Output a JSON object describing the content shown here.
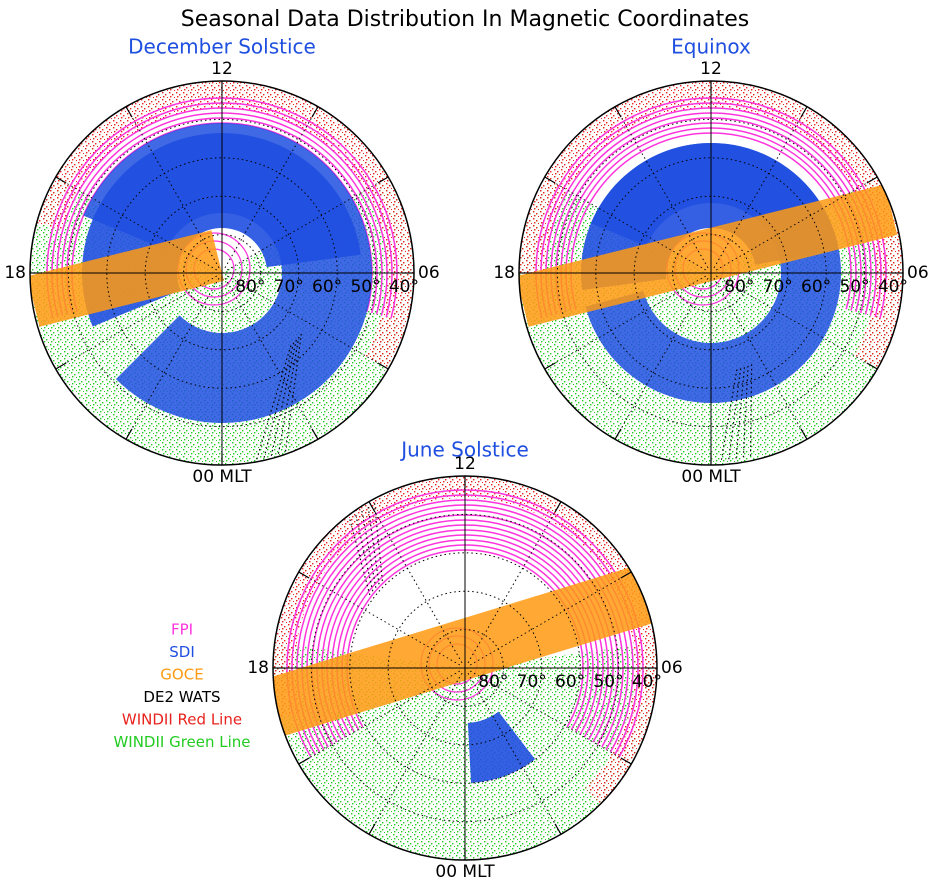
{
  "title": "Seasonal Data Distribution In Magnetic Coordinates",
  "legend": [
    {
      "name": "FPI",
      "color": "#ff33dd"
    },
    {
      "name": "SDI",
      "color": "#1f4fe0"
    },
    {
      "name": "GOCE",
      "color": "#ff9a10"
    },
    {
      "name": "DE2 WATS",
      "color": "#000000"
    },
    {
      "name": "WINDII Red Line",
      "color": "#e8231e"
    },
    {
      "name": "WINDII Green Line",
      "color": "#22cc22"
    }
  ],
  "chart_data": [
    {
      "type": "polar",
      "title": "December Solstice",
      "title_color": "#1f4fe0",
      "rlim": [
        90,
        40
      ],
      "rticks": [
        {
          "value": 80,
          "label": "80°"
        },
        {
          "value": 70,
          "label": "70°"
        },
        {
          "value": 60,
          "label": "60°"
        },
        {
          "value": 50,
          "label": "50°"
        },
        {
          "value": 40,
          "label": "40°"
        }
      ],
      "thetaticks": [
        {
          "value": 12,
          "label": "12"
        },
        {
          "value": 18,
          "label": "18"
        },
        {
          "value": 6,
          "label": "06"
        },
        {
          "value": 0,
          "label": "00 MLT"
        }
      ]
    },
    {
      "type": "polar",
      "title": "Equinox",
      "title_color": "#1f4fe0",
      "rlim": [
        90,
        40
      ],
      "rticks": [
        {
          "value": 80,
          "label": "80°"
        },
        {
          "value": 70,
          "label": "70°"
        },
        {
          "value": 60,
          "label": "60°"
        },
        {
          "value": 50,
          "label": "50°"
        },
        {
          "value": 40,
          "label": "40°"
        }
      ],
      "thetaticks": [
        {
          "value": 12,
          "label": "12"
        },
        {
          "value": 18,
          "label": "18"
        },
        {
          "value": 6,
          "label": "06"
        },
        {
          "value": 0,
          "label": "00 MLT"
        }
      ]
    },
    {
      "type": "polar",
      "title": "June Solstice",
      "title_color": "#1f4fe0",
      "rlim": [
        90,
        40
      ],
      "rticks": [
        {
          "value": 80,
          "label": "80°"
        },
        {
          "value": 70,
          "label": "70°"
        },
        {
          "value": 60,
          "label": "60°"
        },
        {
          "value": 50,
          "label": "50°"
        },
        {
          "value": 40,
          "label": "40°"
        }
      ],
      "thetaticks": [
        {
          "value": 12,
          "label": "12"
        },
        {
          "value": 18,
          "label": "18"
        },
        {
          "value": 6,
          "label": "06"
        },
        {
          "value": 0,
          "label": "00 MLT"
        }
      ]
    }
  ]
}
